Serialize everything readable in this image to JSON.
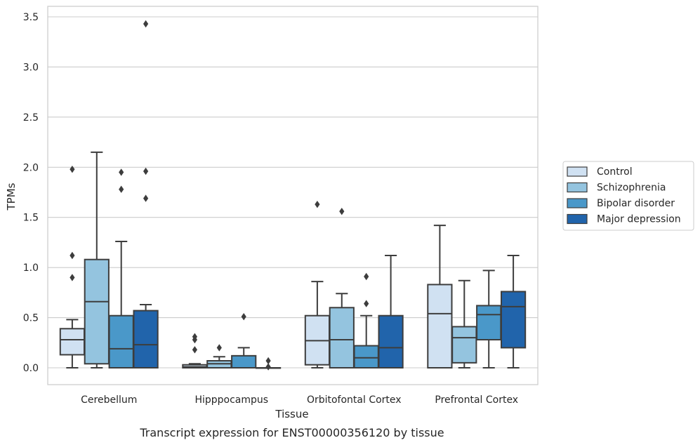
{
  "chart_data": {
    "type": "box",
    "caption": "Transcript expression for ENST00000356120 by tissue",
    "xlabel": "Tissue",
    "ylabel": "TPMs",
    "ylim": [
      -0.17,
      3.6
    ],
    "yticks": [
      0.0,
      0.5,
      1.0,
      1.5,
      2.0,
      2.5,
      3.0,
      3.5
    ],
    "ytick_labels": [
      "0.0",
      "0.5",
      "1.0",
      "1.5",
      "2.0",
      "2.5",
      "3.0",
      "3.5"
    ],
    "grid": "horizontal",
    "legend_position": "right",
    "categories": [
      "Cerebellum",
      "Hipppocampus",
      "Orbitofontal Cortex",
      "Prefrontal Cortex"
    ],
    "series": [
      {
        "name": "Control",
        "color": "#d0e1f2",
        "boxes": [
          {
            "whislo": 0.0,
            "q1": 0.13,
            "med": 0.28,
            "q3": 0.39,
            "whishi": 0.48,
            "fliers": [
              0.9,
              1.12,
              1.98
            ]
          },
          {
            "whislo": 0.0,
            "q1": 0.0,
            "med": 0.01,
            "q3": 0.03,
            "whishi": 0.04,
            "fliers": [
              0.18,
              0.28,
              0.31
            ]
          },
          {
            "whislo": 0.0,
            "q1": 0.03,
            "med": 0.27,
            "q3": 0.52,
            "whishi": 0.86,
            "fliers": [
              1.63
            ]
          },
          {
            "whislo": 0.0,
            "q1": 0.0,
            "med": 0.54,
            "q3": 0.83,
            "whishi": 1.42,
            "fliers": []
          }
        ]
      },
      {
        "name": "Schizophrenia",
        "color": "#94c4df",
        "boxes": [
          {
            "whislo": 0.0,
            "q1": 0.04,
            "med": 0.66,
            "q3": 1.08,
            "whishi": 2.15,
            "fliers": []
          },
          {
            "whislo": 0.0,
            "q1": 0.0,
            "med": 0.04,
            "q3": 0.07,
            "whishi": 0.11,
            "fliers": [
              0.2
            ]
          },
          {
            "whislo": 0.0,
            "q1": 0.0,
            "med": 0.28,
            "q3": 0.6,
            "whishi": 0.74,
            "fliers": [
              1.56
            ]
          },
          {
            "whislo": 0.0,
            "q1": 0.05,
            "med": 0.3,
            "q3": 0.41,
            "whishi": 0.87,
            "fliers": []
          }
        ]
      },
      {
        "name": "Bipolar disorder",
        "color": "#4a98c9",
        "boxes": [
          {
            "whislo": 0.0,
            "q1": 0.0,
            "med": 0.19,
            "q3": 0.52,
            "whishi": 1.26,
            "fliers": [
              1.78,
              1.95
            ]
          },
          {
            "whislo": 0.0,
            "q1": 0.0,
            "med": 0.0,
            "q3": 0.12,
            "whishi": 0.2,
            "fliers": [
              0.51
            ]
          },
          {
            "whislo": 0.0,
            "q1": 0.0,
            "med": 0.1,
            "q3": 0.22,
            "whishi": 0.52,
            "fliers": [
              0.64,
              0.91
            ]
          },
          {
            "whislo": 0.0,
            "q1": 0.28,
            "med": 0.53,
            "q3": 0.62,
            "whishi": 0.97,
            "fliers": []
          }
        ]
      },
      {
        "name": "Major depression",
        "color": "#2164ab",
        "boxes": [
          {
            "whislo": 0.0,
            "q1": 0.0,
            "med": 0.23,
            "q3": 0.57,
            "whishi": 0.63,
            "fliers": [
              1.69,
              1.96,
              3.43
            ]
          },
          {
            "whislo": 0.0,
            "q1": 0.0,
            "med": 0.0,
            "q3": 0.0,
            "whishi": 0.0,
            "fliers": [
              0.07,
              0.01
            ]
          },
          {
            "whislo": 0.0,
            "q1": 0.0,
            "med": 0.2,
            "q3": 0.52,
            "whishi": 1.12,
            "fliers": []
          },
          {
            "whislo": 0.0,
            "q1": 0.2,
            "med": 0.61,
            "q3": 0.76,
            "whishi": 1.12,
            "fliers": []
          }
        ]
      }
    ]
  }
}
